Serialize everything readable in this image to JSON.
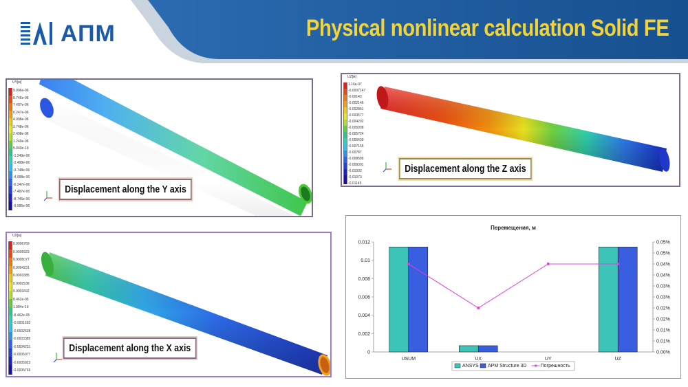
{
  "header": {
    "logo_text": "АПМ",
    "title": "Physical nonlinear calculation Solid FE",
    "colors": {
      "band": "#1b5a99",
      "title": "#f3d33a",
      "logo": "#1a5aa6"
    }
  },
  "panels": {
    "uy": {
      "caption": "Displacement along the Y axis",
      "scale_title": "UY[м]",
      "scale_values": [
        "9.996e-06",
        "8.746e-06",
        "7.497e-06",
        "6.247e-06",
        "4.998e-06",
        "3.748e-06",
        "2.498e-06",
        "1.249e-06",
        "5.049e-19",
        "-1.249e-06",
        "-2.498e-06",
        "-3.748e-06",
        "-4.998e-06",
        "-6.247e-06",
        "-7.497e-06",
        "-8.746e-06",
        "-9.996e-06"
      ]
    },
    "uz": {
      "caption": "Displacement along the Z axis",
      "scale_title": "UZ[м]",
      "scale_values": [
        "1.16e-07",
        "-0.0007147",
        "-0.00143",
        "-0.002146",
        "-0.002861",
        "-0.003577",
        "-0.004292",
        "-0.005008",
        "-0.005724",
        "-0.006439",
        "-0.007155",
        "-0.00787",
        "-0.008586",
        "-0.009301",
        "-0.01002",
        "-0.01073",
        "-0.01145"
      ]
    },
    "ux": {
      "caption": "Displacement along the X axis",
      "scale_title": "UX[м]",
      "scale_values": [
        "0.0006769",
        "0.0005923",
        "0.0005077",
        "0.0004231",
        "0.0003385",
        "0.0002538",
        "0.0001692",
        "8.462e-05",
        "1.084e-19",
        "-8.462e-05",
        "-0.0001692",
        "-0.0002538",
        "-0.0003385",
        "-0.0004231",
        "-0.0005077",
        "-0.0005923",
        "-0.0006769"
      ]
    }
  },
  "chart_data": {
    "type": "bar",
    "title": "Перемещения, м",
    "categories": [
      "USUM",
      "UX",
      "UY",
      "UZ"
    ],
    "series": [
      {
        "name": "ANSYS",
        "type": "bar",
        "axis": "left",
        "color": "#3cc4b8",
        "values": [
          0.01145,
          0.00068,
          0,
          0.01145
        ]
      },
      {
        "name": "APM Structure 3D",
        "type": "bar",
        "axis": "left",
        "color": "#3a5ee0",
        "values": [
          0.01145,
          0.00068,
          0,
          0.01145
        ]
      },
      {
        "name": "Погрешность",
        "type": "line",
        "axis": "right",
        "color": "#e040e0",
        "values": [
          0.0004,
          0.0002,
          0.0004,
          0.0004
        ]
      }
    ],
    "ylim_left": [
      0,
      0.012
    ],
    "yticks_left": [
      "0",
      "0.002",
      "0.004",
      "0.006",
      "0.008",
      "0.01",
      "0.012"
    ],
    "ylim_right": [
      0,
      0.0005
    ],
    "yticks_right": [
      "0.00%",
      "0.01%",
      "0.01%",
      "0.02%",
      "0.02%",
      "0.03%",
      "0.03%",
      "0.04%",
      "0.04%",
      "0.05%",
      "0.05%"
    ],
    "legend_position": "bottom",
    "grid": false
  }
}
